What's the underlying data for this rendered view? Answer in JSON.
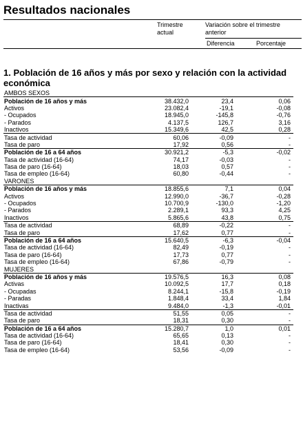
{
  "title": "Resultados nacionales",
  "header": {
    "col1": "Trimestre actual",
    "col2": "Variación sobre el trimestre anterior",
    "sub1": "Diferencia",
    "sub2": "Porcentaje"
  },
  "section": "1. Población de 16 años y más por sexo y relación con la actividad económica",
  "rows": [
    {
      "t": "g",
      "label": "AMBOS SEXOS",
      "v": "",
      "d": "",
      "p": ""
    },
    {
      "t": "b",
      "label": "Población de 16 años y más",
      "v": "38.432,0",
      "d": "23,4",
      "p": "0,06"
    },
    {
      "t": "n",
      "label": "Activos",
      "v": "23.082,4",
      "d": "-19,1",
      "p": "-0,08"
    },
    {
      "t": "n",
      "label": " - Ocupados",
      "v": "18.945,0",
      "d": "-145,8",
      "p": "-0,76"
    },
    {
      "t": "n",
      "label": " - Parados",
      "v": "4.137,5",
      "d": "126,7",
      "p": "3,16"
    },
    {
      "t": "n",
      "label": "Inactivos",
      "v": "15.349,6",
      "d": "42,5",
      "p": "0,28"
    },
    {
      "t": "s",
      "label": "Tasa de actividad",
      "v": "60,06",
      "d": "-0,09",
      "p": "-"
    },
    {
      "t": "n",
      "label": "Tasa de paro",
      "v": "17,92",
      "d": "0,56",
      "p": "-"
    },
    {
      "t": "sb",
      "label": "Población de 16 a 64 años",
      "v": "30.921,2",
      "d": "-5,3",
      "p": "-0,02"
    },
    {
      "t": "n",
      "label": "Tasa de actividad (16-64)",
      "v": "74,17",
      "d": "-0,03",
      "p": "-"
    },
    {
      "t": "n",
      "label": "Tasa de paro (16-64)",
      "v": "18,03",
      "d": "0,57",
      "p": "-"
    },
    {
      "t": "n",
      "label": "Tasa de empleo (16-64)",
      "v": "60,80",
      "d": "-0,44",
      "p": "-"
    },
    {
      "t": "g",
      "label": "VARONES",
      "v": "",
      "d": "",
      "p": ""
    },
    {
      "t": "b",
      "label": "Población de 16 años y más",
      "v": "18.855,6",
      "d": "7,1",
      "p": "0,04"
    },
    {
      "t": "n",
      "label": "Activos",
      "v": "12.990,0",
      "d": "-36,7",
      "p": "-0,28"
    },
    {
      "t": "n",
      "label": " - Ocupados",
      "v": "10.700,9",
      "d": "-130,0",
      "p": "-1,20"
    },
    {
      "t": "n",
      "label": " - Parados",
      "v": "2.289,1",
      "d": "93,3",
      "p": "4,25"
    },
    {
      "t": "n",
      "label": "Inactivos",
      "v": "5.865,6",
      "d": "43,8",
      "p": "0,75"
    },
    {
      "t": "s",
      "label": "Tasa de actividad",
      "v": "68,89",
      "d": "-0,22",
      "p": "-"
    },
    {
      "t": "n",
      "label": "Tasa de paro",
      "v": "17,62",
      "d": "0,77",
      "p": "-"
    },
    {
      "t": "sb",
      "label": "Población de 16 a 64 años",
      "v": "15.640,5",
      "d": "-6,3",
      "p": "-0,04"
    },
    {
      "t": "n",
      "label": "Tasa de actividad (16-64)",
      "v": "82,49",
      "d": "-0,19",
      "p": "-"
    },
    {
      "t": "n",
      "label": "Tasa de paro (16-64)",
      "v": "17,73",
      "d": "0,77",
      "p": "-"
    },
    {
      "t": "n",
      "label": "Tasa de empleo (16-64)",
      "v": "67,86",
      "d": "-0,79",
      "p": "-"
    },
    {
      "t": "g",
      "label": "MUJERES",
      "v": "",
      "d": "",
      "p": ""
    },
    {
      "t": "b",
      "label": "Población de 16 años y más",
      "v": "19.576,5",
      "d": "16,3",
      "p": "0,08"
    },
    {
      "t": "n",
      "label": "Activas",
      "v": "10.092,5",
      "d": "17,7",
      "p": "0,18"
    },
    {
      "t": "n",
      "label": " - Ocupadas",
      "v": "8.244,1",
      "d": "-15,8",
      "p": "-0,19"
    },
    {
      "t": "n",
      "label": " - Paradas",
      "v": "1.848,4",
      "d": "33,4",
      "p": "1,84"
    },
    {
      "t": "n",
      "label": "Inactivas",
      "v": "9.484,0",
      "d": "-1,3",
      "p": "-0,01"
    },
    {
      "t": "s",
      "label": "Tasa de actividad",
      "v": "51,55",
      "d": "0,05",
      "p": "-"
    },
    {
      "t": "n",
      "label": "Tasa de paro",
      "v": "18,31",
      "d": "0,30",
      "p": "-"
    },
    {
      "t": "sb",
      "label": "Población de 16 a 64 años",
      "v": "15.280,7",
      "d": "1,0",
      "p": "0,01"
    },
    {
      "t": "n",
      "label": "Tasa de actividad (16-64)",
      "v": "65,65",
      "d": "0,13",
      "p": "-"
    },
    {
      "t": "n",
      "label": "Tasa de paro (16-64)",
      "v": "18,41",
      "d": "0,30",
      "p": "-"
    },
    {
      "t": "n",
      "label": "Tasa de empleo (16-64)",
      "v": "53,56",
      "d": "-0,09",
      "p": "-"
    }
  ]
}
